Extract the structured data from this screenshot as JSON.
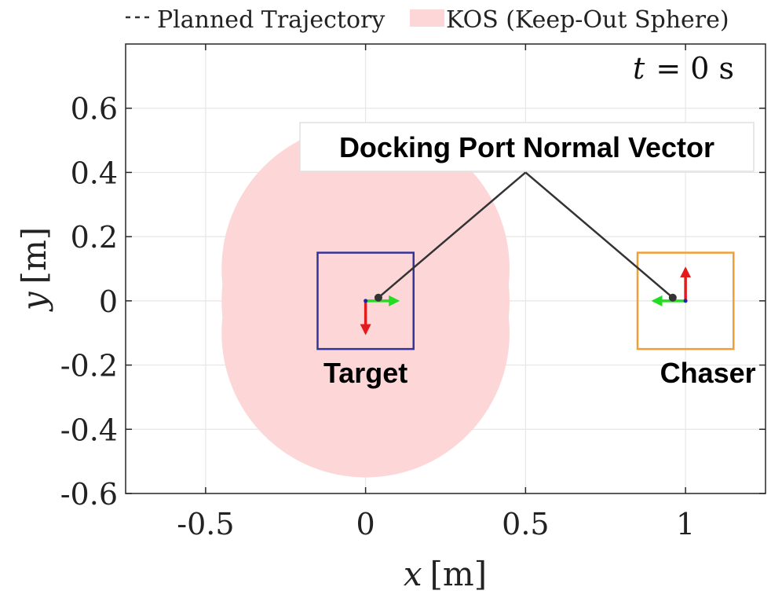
{
  "chart_data": {
    "type": "scatter",
    "title": "",
    "xlabel": "x [m]",
    "ylabel": "y [m]",
    "xlabel_var": "x",
    "ylabel_var": "y",
    "unit_label": "[m]",
    "xlim": [
      -0.75,
      1.25
    ],
    "ylim": [
      -0.6,
      0.8
    ],
    "grid": true,
    "x_ticks": [
      -0.5,
      0,
      0.5,
      1
    ],
    "x_tick_labels": [
      "-0.5",
      "0",
      "0.5",
      "1"
    ],
    "y_ticks": [
      -0.6,
      -0.4,
      -0.2,
      0,
      0.2,
      0.4,
      0.6
    ],
    "y_tick_labels": [
      "-0.6",
      "-0.4",
      "-0.2",
      "0",
      "0.2",
      "0.4",
      "0.6"
    ],
    "legend": {
      "placement": "top-outside",
      "entries": [
        {
          "label": "Planned Trajectory",
          "style": "dashed"
        },
        {
          "label": "KOS (Keep-Out Sphere)",
          "style": "patch"
        }
      ]
    },
    "time_label": "t = 0 s",
    "time_var": "t",
    "time_eq": "= 0 s",
    "time_value": 0,
    "kos": {
      "circles": [
        {
          "cx": 0.0,
          "cy": 0.0,
          "r": 0.45
        },
        {
          "cx": 0.0,
          "cy": 0.1,
          "r": 0.45
        },
        {
          "cx": 0.0,
          "cy": -0.1,
          "r": 0.45
        }
      ]
    },
    "bodies": [
      {
        "name": "Target",
        "label": "Target",
        "center": [
          0,
          0
        ],
        "half_size": 0.15,
        "port": [
          0.04,
          0.01
        ],
        "x_axis": [
          0.1,
          0
        ],
        "y_axis": [
          0,
          -0.1
        ],
        "label_pos": [
          0,
          -0.225
        ]
      },
      {
        "name": "Chaser",
        "label": "Chaser",
        "center": [
          1,
          0
        ],
        "half_size": 0.15,
        "port": [
          0.96,
          0.01
        ],
        "x_axis": [
          -0.1,
          0
        ],
        "y_axis": [
          0,
          0.1
        ],
        "label_pos": [
          1.07,
          -0.225
        ]
      }
    ],
    "annotation": {
      "text": "Docking Port Normal Vector",
      "anchor": [
        0.5,
        0.4
      ],
      "targets": [
        [
          0.04,
          0.01
        ],
        [
          0.96,
          0.01
        ]
      ]
    }
  },
  "colors": {
    "kos": "#fdd7d7",
    "target": "#33339a",
    "chaser": "#f29e36",
    "axis_x": "#22dd22",
    "axis_y": "#e31b1b",
    "grid": "#e6e6e6",
    "annotation_line": "#333333"
  }
}
